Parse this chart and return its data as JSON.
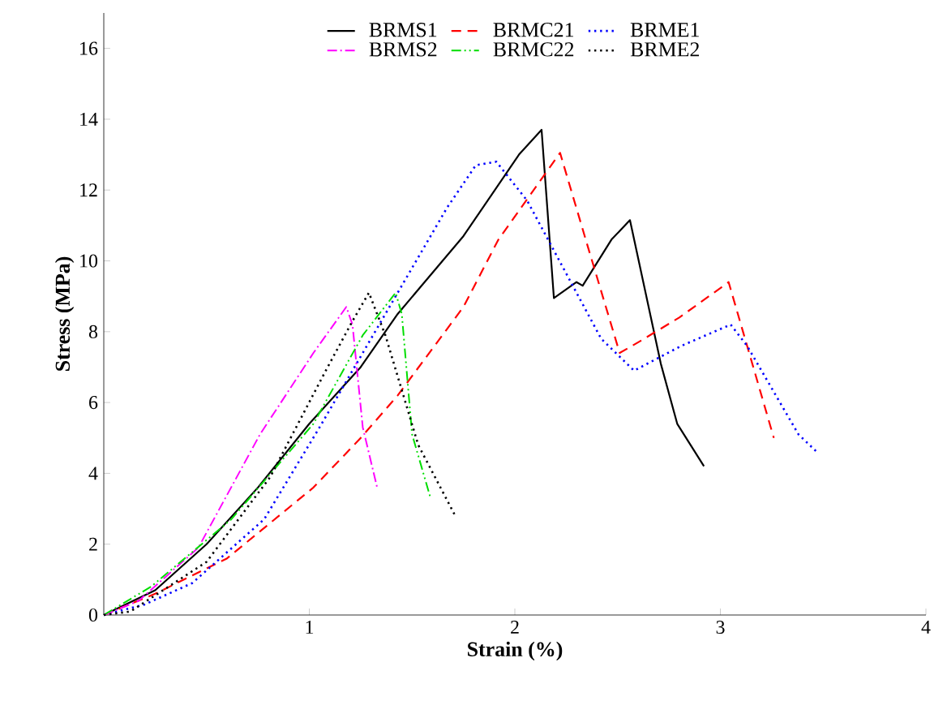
{
  "chart_data": {
    "type": "line",
    "xlabel": "Strain (%)",
    "ylabel": "Stress (MPa)",
    "xlim": [
      0,
      4
    ],
    "ylim": [
      0,
      17
    ],
    "xticks": [
      1,
      2,
      3,
      4
    ],
    "yticks": [
      0,
      2,
      4,
      6,
      8,
      10,
      12,
      14,
      16
    ],
    "legend": "top",
    "grid": false,
    "marker": "none",
    "series": [
      {
        "name": "BRMS1",
        "color": "#000000",
        "line_style": "solid",
        "x": [
          0,
          0.25,
          0.5,
          0.75,
          1.0,
          1.25,
          1.43,
          1.75,
          2.02,
          2.13,
          2.19,
          2.3,
          2.33,
          2.47,
          2.56,
          2.71,
          2.79,
          2.92
        ],
        "values": [
          0,
          0.7,
          2.0,
          3.6,
          5.4,
          7.0,
          8.5,
          10.7,
          13.0,
          13.7,
          8.95,
          9.4,
          9.3,
          10.6,
          11.15,
          7.1,
          5.4,
          4.2
        ]
      },
      {
        "name": "BRMC21",
        "color": "#ff0000",
        "line_style": "dashed",
        "x": [
          0,
          0.25,
          0.6,
          1.02,
          1.25,
          1.43,
          1.75,
          1.92,
          2.22,
          2.35,
          2.51,
          2.6,
          2.8,
          3.04,
          3.15,
          3.26
        ],
        "values": [
          0,
          0.6,
          1.6,
          3.6,
          5.0,
          6.2,
          8.7,
          10.6,
          13.05,
          10.5,
          7.4,
          7.7,
          8.4,
          9.4,
          7.2,
          5.0
        ]
      },
      {
        "name": "BRME1",
        "color": "#0000ff",
        "line_style": "dotted",
        "x": [
          0,
          0.2,
          0.43,
          0.78,
          1.05,
          1.29,
          1.49,
          1.67,
          1.81,
          1.91,
          2.06,
          2.18,
          2.3,
          2.42,
          2.58,
          2.81,
          3.05,
          3.13,
          3.38,
          3.47
        ],
        "values": [
          0,
          0.3,
          0.9,
          2.7,
          5.3,
          7.7,
          9.7,
          11.5,
          12.7,
          12.8,
          11.7,
          10.4,
          9.1,
          7.8,
          6.9,
          7.6,
          8.2,
          7.6,
          5.1,
          4.6
        ]
      },
      {
        "name": "BRMS2",
        "color": "#ff00ff",
        "line_style": "dashdot",
        "x": [
          0,
          0.17,
          0.46,
          0.76,
          1.02,
          1.18,
          1.21,
          1.26,
          1.33
        ],
        "values": [
          0,
          0.4,
          1.9,
          5.1,
          7.4,
          8.7,
          8.2,
          5.3,
          3.6
        ]
      },
      {
        "name": "BRMC22",
        "color": "#00dd00",
        "line_style": "dashdotdot",
        "x": [
          0,
          0.23,
          0.62,
          1.02,
          1.26,
          1.42,
          1.45,
          1.5,
          1.59
        ],
        "values": [
          0,
          0.8,
          2.7,
          5.4,
          7.9,
          9.1,
          8.5,
          5.1,
          3.3
        ]
      },
      {
        "name": "BRME2",
        "color": "#000000",
        "line_style": "dotted",
        "x": [
          0,
          0.13,
          0.5,
          0.81,
          1.08,
          1.21,
          1.29,
          1.37,
          1.53,
          1.71
        ],
        "values": [
          0,
          0.1,
          1.5,
          3.9,
          6.9,
          8.3,
          9.1,
          7.9,
          4.8,
          2.8
        ]
      }
    ]
  }
}
